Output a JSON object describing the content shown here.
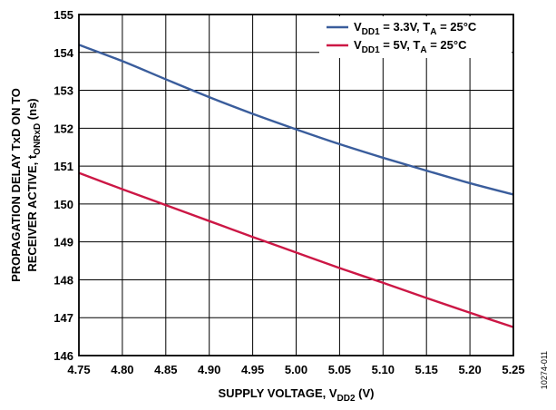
{
  "chart_data": {
    "type": "line",
    "title": "",
    "xlabel": {
      "main": "SUPPLY VOLTAGE, V",
      "sub": "DD2",
      "suffix": " (V)"
    },
    "ylabel": {
      "line1": "PROPAGATION DELAY TxD ON TO",
      "line2_main": "RECEIVER ACTIVE, t",
      "line2_sub": "ONRxD",
      "line2_suffix": " (ns)"
    },
    "xlim": [
      4.75,
      5.25
    ],
    "ylim": [
      146,
      155
    ],
    "xticks": [
      "4.75",
      "4.80",
      "4.85",
      "4.90",
      "4.95",
      "5.00",
      "5.05",
      "5.10",
      "5.15",
      "5.20",
      "5.25"
    ],
    "yticks": [
      "146",
      "147",
      "148",
      "149",
      "150",
      "151",
      "152",
      "153",
      "154",
      "155"
    ],
    "grid": true,
    "legend_position": "top-right",
    "series": [
      {
        "legend": {
          "v": "V",
          "vsub": "DD1",
          "mid": " = 3.3V, T",
          "tsub": "A",
          "end": " = 25°C"
        },
        "color": "#3a5d9c",
        "x": [
          4.75,
          4.8,
          4.85,
          4.9,
          4.95,
          5.0,
          5.05,
          5.1,
          5.15,
          5.2,
          5.25
        ],
        "y": [
          154.2,
          153.77,
          153.29,
          152.82,
          152.38,
          151.97,
          151.58,
          151.22,
          150.88,
          150.55,
          150.25
        ]
      },
      {
        "legend": {
          "v": "V",
          "vsub": "DD1",
          "mid": " = 5V, T",
          "tsub": "A",
          "end": " = 25°C"
        },
        "color": "#cc1745",
        "x": [
          4.75,
          4.8,
          4.85,
          4.9,
          4.95,
          5.0,
          5.05,
          5.1,
          5.15,
          5.2,
          5.25
        ],
        "y": [
          150.82,
          150.39,
          149.97,
          149.55,
          149.13,
          148.72,
          148.31,
          147.92,
          147.52,
          147.13,
          146.75
        ]
      }
    ],
    "figure_id": "10274-011"
  }
}
